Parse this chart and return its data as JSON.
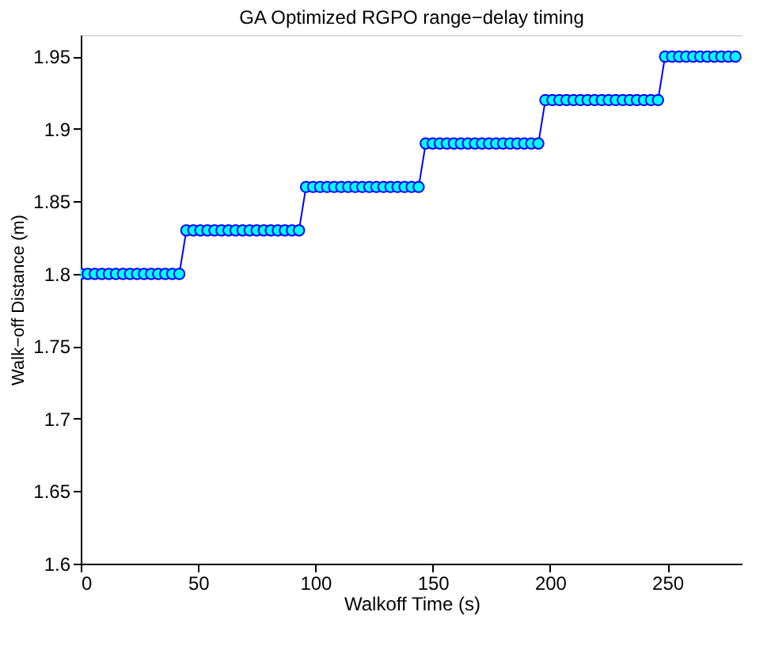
{
  "chart_data": {
    "type": "line",
    "title": "GA Optimized RGPO range−delay timing",
    "xlabel": "Walkoff Time (s)",
    "ylabel": "Walk−off Distance (m)",
    "x": [
      0,
      3,
      6,
      9,
      12,
      15,
      18,
      21,
      24,
      27,
      30,
      33,
      36,
      39,
      42,
      45,
      48,
      51,
      54,
      57,
      60,
      63,
      66,
      69,
      72,
      75,
      78,
      81,
      84,
      87,
      90,
      93,
      96,
      99,
      102,
      105,
      108,
      111,
      114,
      117,
      120,
      123,
      126,
      129,
      132,
      135,
      138,
      141,
      144,
      147,
      150,
      153,
      156,
      159,
      162,
      165,
      168,
      171,
      174,
      177,
      180,
      183,
      186,
      189,
      192,
      195,
      198,
      201,
      204,
      207,
      210,
      213,
      216,
      219,
      222,
      225,
      228,
      231,
      234,
      237,
      240,
      243,
      246,
      249,
      252,
      255,
      258,
      261,
      264,
      267,
      270,
      273,
      276,
      279
    ],
    "series": [
      {
        "color": "#0000ff",
        "values": [
          1.8,
          1.8,
          1.8,
          1.8,
          1.8,
          1.8,
          1.8,
          1.8,
          1.8,
          1.8,
          1.8,
          1.8,
          1.8,
          1.8,
          1.8,
          1.83,
          1.83,
          1.83,
          1.83,
          1.83,
          1.83,
          1.83,
          1.83,
          1.83,
          1.83,
          1.83,
          1.83,
          1.83,
          1.83,
          1.83,
          1.83,
          1.83,
          1.86,
          1.86,
          1.86,
          1.86,
          1.86,
          1.86,
          1.86,
          1.86,
          1.86,
          1.86,
          1.86,
          1.86,
          1.86,
          1.86,
          1.86,
          1.86,
          1.86,
          1.89,
          1.89,
          1.89,
          1.89,
          1.89,
          1.89,
          1.89,
          1.89,
          1.89,
          1.89,
          1.89,
          1.89,
          1.89,
          1.89,
          1.89,
          1.89,
          1.89,
          1.92,
          1.92,
          1.92,
          1.92,
          1.92,
          1.92,
          1.92,
          1.92,
          1.92,
          1.92,
          1.92,
          1.92,
          1.92,
          1.92,
          1.92,
          1.92,
          1.92,
          1.95,
          1.95,
          1.95,
          1.95,
          1.95,
          1.95,
          1.95,
          1.95,
          1.95,
          1.95,
          1.95
        ]
      }
    ],
    "xlim": [
      0,
      282
    ],
    "xticks": [
      0,
      50,
      100,
      150,
      200,
      250
    ],
    "ylim": [
      1.6,
      1.965
    ],
    "yticks": [
      1.6,
      1.65,
      1.7,
      1.75,
      1.8,
      1.85,
      1.9,
      1.95
    ],
    "grid": false,
    "legend": false,
    "marker": "circle",
    "line_style": "solid"
  }
}
